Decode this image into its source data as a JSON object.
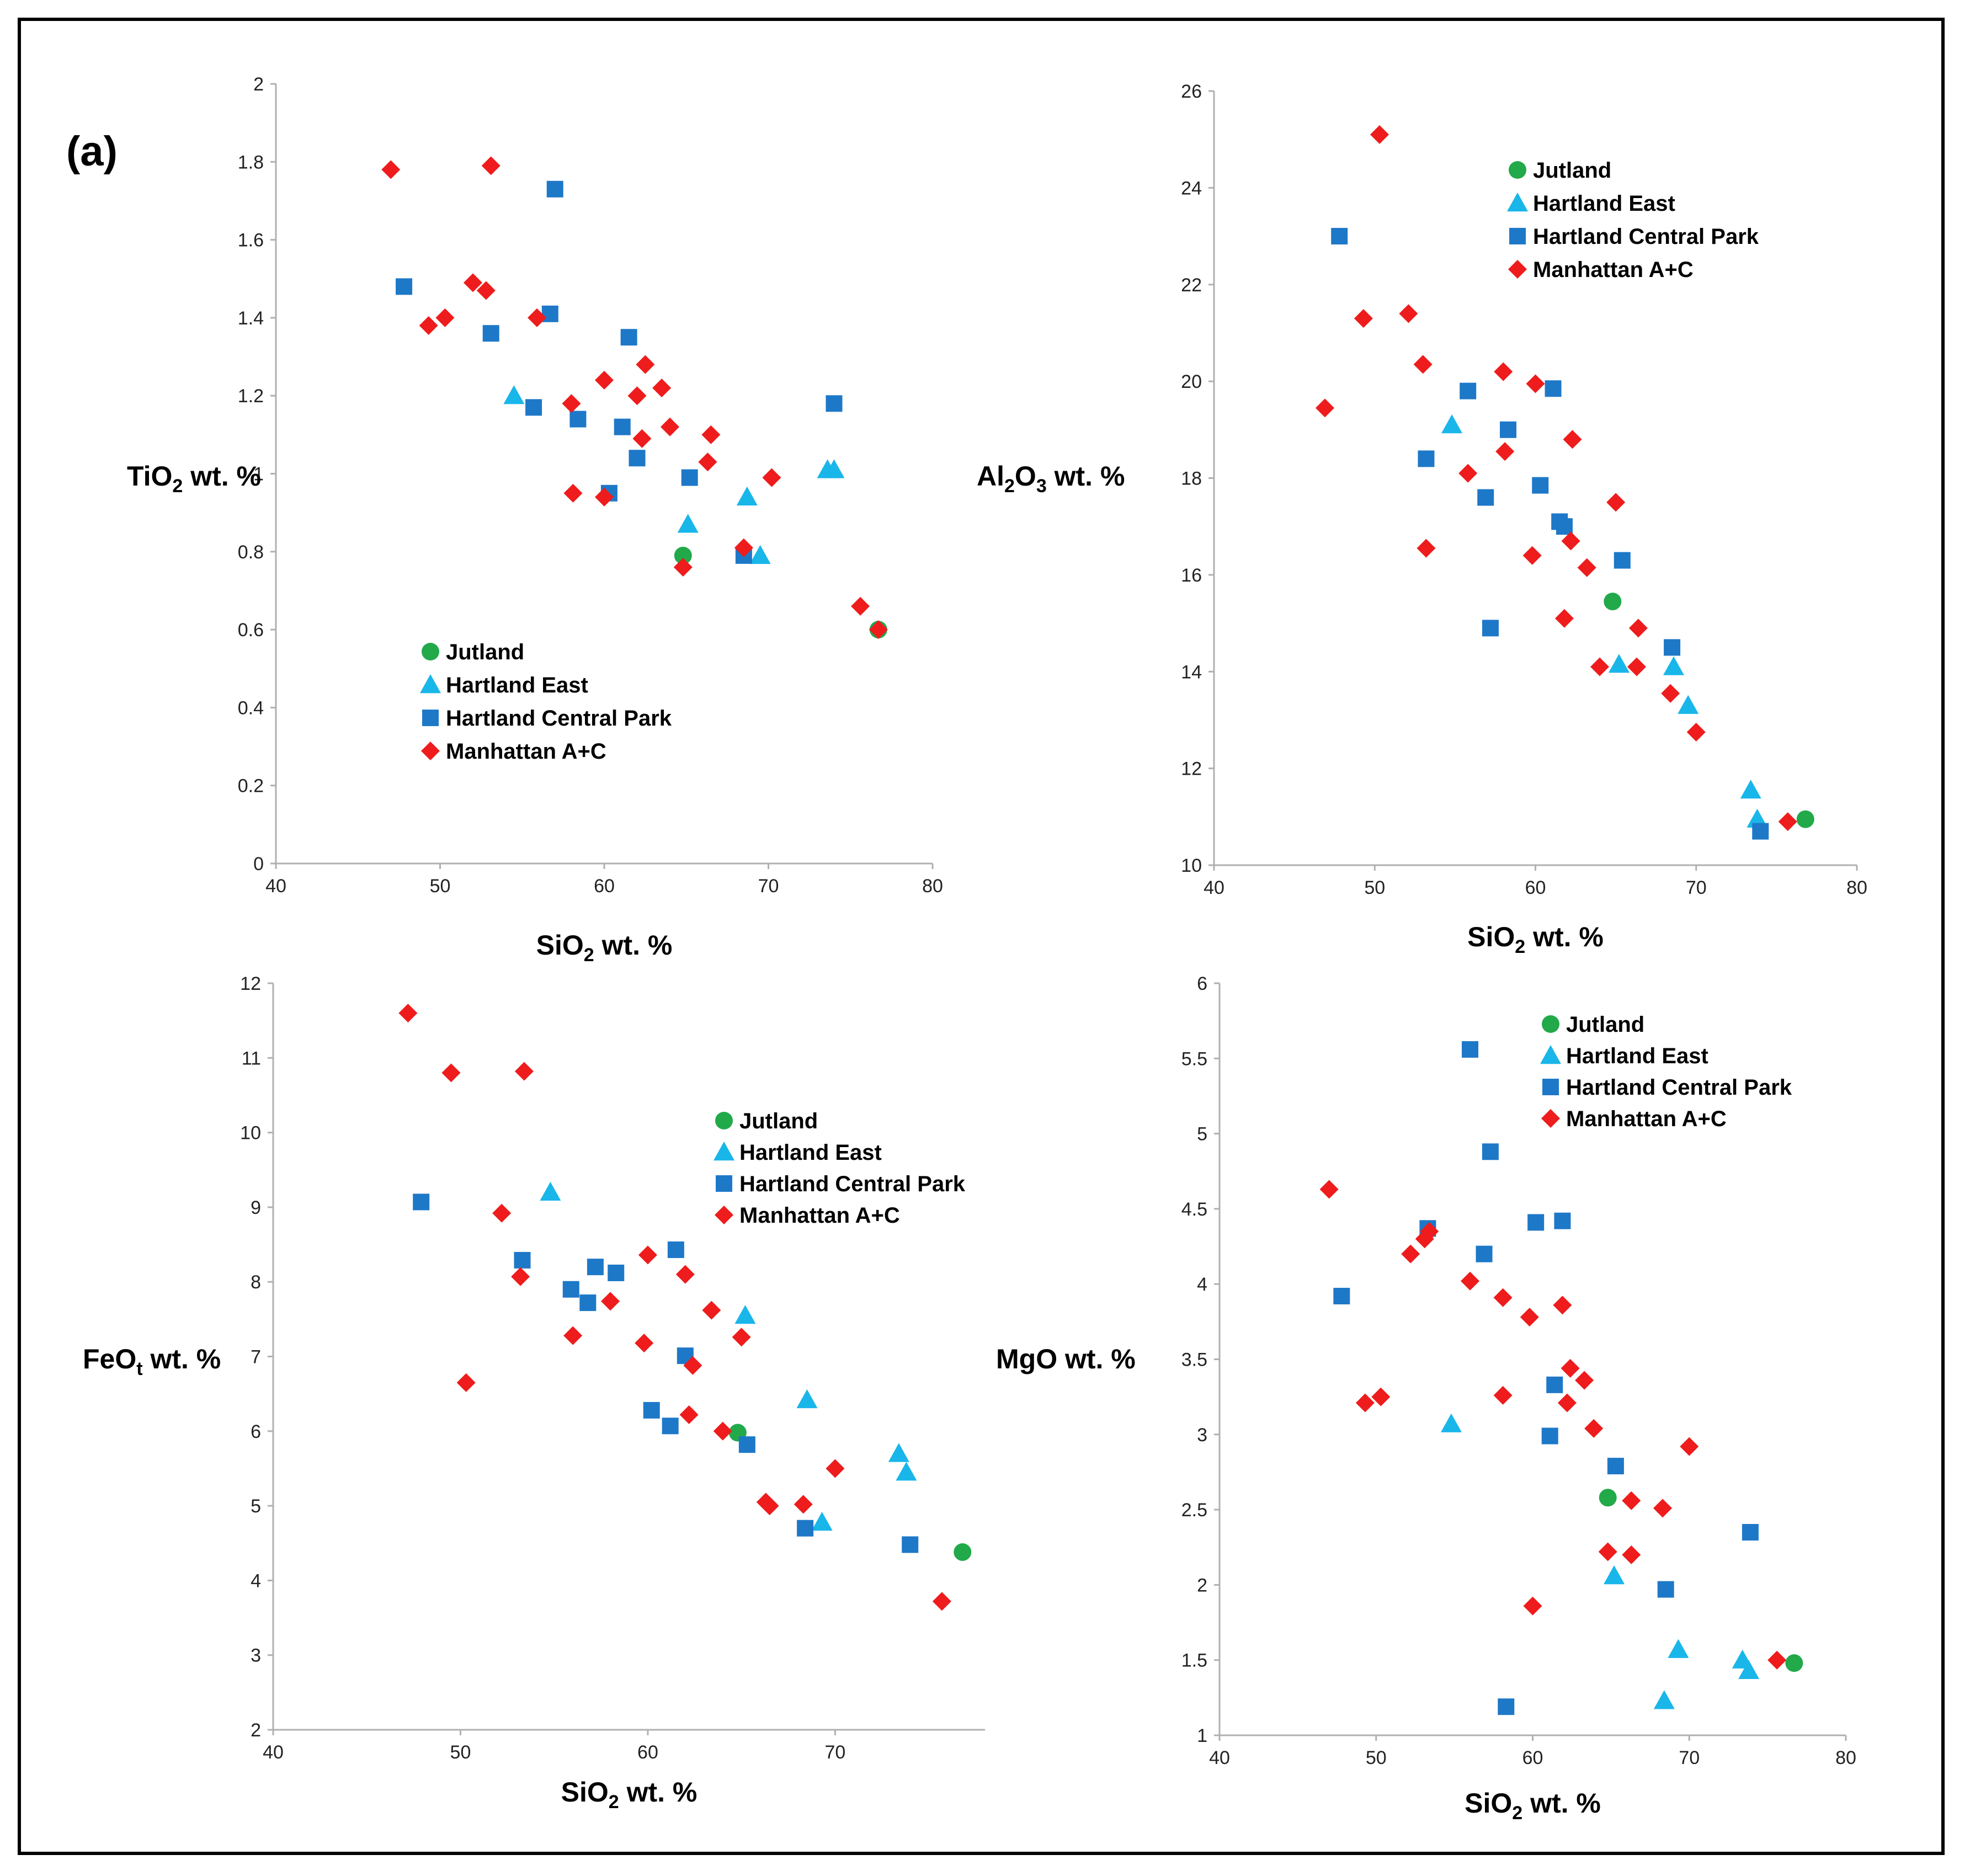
{
  "figure_label": "(a)",
  "colors": {
    "Jutland": "#22a94a",
    "Hartland East": "#19b6ea",
    "Hartland Central Park": "#1e78c8",
    "Manhattan A+C": "#ee1c1c"
  },
  "legend_items": [
    "Jutland",
    "Hartland East",
    "Hartland Central Park",
    "Manhattan A+C"
  ],
  "chart_data": [
    {
      "type": "scatter",
      "panel": "TiO2",
      "xlabel": "SiO2 wt. %",
      "ylabel": "TiO2 wt. %",
      "xlim": [
        40,
        80
      ],
      "ylim": [
        0,
        2
      ],
      "xticks": [
        40,
        50,
        60,
        70,
        80
      ],
      "yticks": [
        0,
        0.2,
        0.4,
        0.6,
        0.8,
        1,
        1.2,
        1.4,
        1.6,
        1.8,
        2
      ],
      "legend_position": "center-left",
      "series": [
        {
          "name": "Jutland",
          "marker": "circle",
          "points": [
            [
              64.8,
              0.79
            ],
            [
              76.7,
              0.6
            ]
          ]
        },
        {
          "name": "Hartland East",
          "marker": "triangle",
          "points": [
            [
              54.5,
              1.2
            ],
            [
              65.1,
              0.87
            ],
            [
              68.7,
              0.94
            ],
            [
              69.5,
              0.79
            ],
            [
              73.6,
              1.01
            ],
            [
              74.0,
              1.01
            ]
          ]
        },
        {
          "name": "Hartland Central Park",
          "marker": "square",
          "points": [
            [
              47.8,
              1.48
            ],
            [
              53.1,
              1.36
            ],
            [
              55.7,
              1.17
            ],
            [
              56.7,
              1.41
            ],
            [
              57.0,
              1.73
            ],
            [
              58.4,
              1.14
            ],
            [
              60.3,
              0.95
            ],
            [
              61.1,
              1.12
            ],
            [
              61.5,
              1.35
            ],
            [
              62.0,
              1.04
            ],
            [
              65.2,
              0.99
            ],
            [
              68.5,
              0.79
            ],
            [
              74.0,
              1.18
            ]
          ]
        },
        {
          "name": "Manhattan A+C",
          "marker": "diamond",
          "points": [
            [
              47.0,
              1.78
            ],
            [
              49.3,
              1.38
            ],
            [
              50.3,
              1.4
            ],
            [
              52.0,
              1.49
            ],
            [
              52.8,
              1.47
            ],
            [
              53.1,
              1.79
            ],
            [
              55.9,
              1.4
            ],
            [
              58.0,
              1.18
            ],
            [
              58.1,
              0.95
            ],
            [
              60.0,
              1.24
            ],
            [
              60.0,
              0.94
            ],
            [
              62.0,
              1.2
            ],
            [
              62.3,
              1.09
            ],
            [
              62.5,
              1.28
            ],
            [
              63.5,
              1.22
            ],
            [
              64.0,
              1.12
            ],
            [
              64.8,
              0.76
            ],
            [
              66.3,
              1.03
            ],
            [
              66.5,
              1.1
            ],
            [
              68.5,
              0.81
            ],
            [
              70.2,
              0.99
            ],
            [
              75.6,
              0.66
            ],
            [
              76.7,
              0.6
            ]
          ]
        }
      ]
    },
    {
      "type": "scatter",
      "panel": "Al2O3",
      "xlabel": "SiO2 wt. %",
      "ylabel": "Al2O3 wt. %",
      "xlim": [
        40,
        80
      ],
      "ylim": [
        10,
        26
      ],
      "xticks": [
        40,
        50,
        60,
        70,
        80
      ],
      "yticks": [
        10,
        12,
        14,
        16,
        18,
        20,
        22,
        24,
        26
      ],
      "legend_position": "top-center",
      "series": [
        {
          "name": "Jutland",
          "marker": "circle",
          "points": [
            [
              64.8,
              15.45
            ],
            [
              76.8,
              10.95
            ]
          ]
        },
        {
          "name": "Hartland East",
          "marker": "triangle",
          "points": [
            [
              54.8,
              19.1
            ],
            [
              65.2,
              14.15
            ],
            [
              68.6,
              14.1
            ],
            [
              69.5,
              13.3
            ],
            [
              73.4,
              11.55
            ],
            [
              73.8,
              10.95
            ]
          ]
        },
        {
          "name": "Hartland Central Park",
          "marker": "square",
          "points": [
            [
              47.8,
              23.0
            ],
            [
              53.2,
              18.4
            ],
            [
              55.8,
              19.8
            ],
            [
              56.9,
              17.6
            ],
            [
              57.2,
              14.9
            ],
            [
              58.3,
              19.0
            ],
            [
              60.3,
              17.85
            ],
            [
              61.1,
              19.85
            ],
            [
              61.5,
              17.1
            ],
            [
              61.8,
              17.0
            ],
            [
              65.4,
              16.3
            ],
            [
              68.5,
              14.5
            ],
            [
              74.0,
              10.7
            ]
          ]
        },
        {
          "name": "Manhattan A+C",
          "marker": "diamond",
          "points": [
            [
              46.9,
              19.45
            ],
            [
              49.3,
              21.3
            ],
            [
              50.3,
              25.1
            ],
            [
              52.1,
              21.4
            ],
            [
              53.0,
              20.35
            ],
            [
              53.2,
              16.55
            ],
            [
              55.8,
              18.1
            ],
            [
              58.0,
              20.2
            ],
            [
              58.1,
              18.55
            ],
            [
              59.8,
              16.4
            ],
            [
              60.0,
              19.95
            ],
            [
              61.8,
              15.1
            ],
            [
              62.2,
              16.7
            ],
            [
              62.3,
              18.8
            ],
            [
              63.2,
              16.15
            ],
            [
              64.0,
              14.1
            ],
            [
              65.0,
              17.5
            ],
            [
              66.3,
              14.1
            ],
            [
              66.4,
              14.9
            ],
            [
              68.4,
              13.55
            ],
            [
              70.0,
              12.75
            ],
            [
              75.7,
              10.9
            ]
          ]
        }
      ]
    },
    {
      "type": "scatter",
      "panel": "FeOt",
      "xlabel": "SiO2 wt. %",
      "ylabel": "FeOt wt. %",
      "xlim": [
        40,
        78
      ],
      "ylim": [
        2,
        12
      ],
      "xticks": [
        40,
        50,
        60,
        70
      ],
      "yticks": [
        2,
        3,
        4,
        5,
        6,
        7,
        8,
        9,
        10,
        11,
        12
      ],
      "legend_position": "top-right",
      "series": [
        {
          "name": "Jutland",
          "marker": "circle",
          "points": [
            [
              64.8,
              5.98
            ],
            [
              76.8,
              4.38
            ]
          ]
        },
        {
          "name": "Hartland East",
          "marker": "triangle",
          "points": [
            [
              54.8,
              9.2
            ],
            [
              65.2,
              7.55
            ],
            [
              68.5,
              6.42
            ],
            [
              69.3,
              4.78
            ],
            [
              73.4,
              5.7
            ],
            [
              73.8,
              5.45
            ]
          ]
        },
        {
          "name": "Hartland Central Park",
          "marker": "square",
          "points": [
            [
              47.9,
              9.07
            ],
            [
              53.3,
              8.29
            ],
            [
              55.9,
              7.9
            ],
            [
              56.8,
              7.72
            ],
            [
              57.2,
              8.2
            ],
            [
              58.3,
              8.12
            ],
            [
              60.2,
              6.28
            ],
            [
              61.2,
              6.07
            ],
            [
              61.5,
              8.43
            ],
            [
              62.0,
              7.01
            ],
            [
              65.3,
              5.82
            ],
            [
              68.4,
              4.7
            ],
            [
              74.0,
              4.48
            ]
          ]
        },
        {
          "name": "Manhattan A+C",
          "marker": "diamond",
          "points": [
            [
              47.2,
              11.6
            ],
            [
              49.5,
              10.8
            ],
            [
              50.3,
              6.65
            ],
            [
              52.2,
              8.92
            ],
            [
              53.2,
              8.07
            ],
            [
              53.4,
              10.82
            ],
            [
              56.0,
              7.28
            ],
            [
              58.0,
              7.74
            ],
            [
              59.8,
              7.18
            ],
            [
              60.0,
              8.36
            ],
            [
              62.0,
              8.1
            ],
            [
              62.2,
              6.22
            ],
            [
              62.4,
              6.88
            ],
            [
              63.4,
              7.62
            ],
            [
              64.0,
              6.0
            ],
            [
              65.0,
              7.26
            ],
            [
              66.3,
              5.05
            ],
            [
              66.5,
              5.0
            ],
            [
              68.3,
              5.02
            ],
            [
              70.0,
              5.5
            ],
            [
              75.7,
              3.72
            ]
          ]
        }
      ]
    },
    {
      "type": "scatter",
      "panel": "MgO",
      "xlabel": "SiO2 wt. %",
      "ylabel": "MgO wt. %",
      "xlim": [
        40,
        80
      ],
      "ylim": [
        1,
        6
      ],
      "xticks": [
        40,
        50,
        60,
        70,
        80
      ],
      "yticks": [
        1,
        1.5,
        2,
        2.5,
        3,
        3.5,
        4,
        4.5,
        5,
        5.5,
        6
      ],
      "legend_position": "top-center",
      "series": [
        {
          "name": "Jutland",
          "marker": "circle",
          "points": [
            [
              64.8,
              2.58
            ],
            [
              76.7,
              1.48
            ]
          ]
        },
        {
          "name": "Hartland East",
          "marker": "triangle",
          "points": [
            [
              54.8,
              3.07
            ],
            [
              65.2,
              2.06
            ],
            [
              68.4,
              1.23
            ],
            [
              69.3,
              1.57
            ],
            [
              73.4,
              1.5
            ],
            [
              73.8,
              1.43
            ]
          ]
        },
        {
          "name": "Hartland Central Park",
          "marker": "square",
          "points": [
            [
              47.8,
              3.92
            ],
            [
              53.3,
              4.37
            ],
            [
              56.0,
              5.56
            ],
            [
              56.9,
              4.2
            ],
            [
              57.3,
              4.88
            ],
            [
              58.3,
              1.19
            ],
            [
              60.2,
              4.41
            ],
            [
              61.1,
              2.99
            ],
            [
              61.4,
              3.33
            ],
            [
              61.9,
              4.42
            ],
            [
              65.3,
              2.79
            ],
            [
              68.5,
              1.97
            ],
            [
              73.9,
              2.35
            ]
          ]
        },
        {
          "name": "Manhattan A+C",
          "marker": "diamond",
          "points": [
            [
              47.0,
              4.63
            ],
            [
              49.3,
              3.21
            ],
            [
              50.3,
              3.25
            ],
            [
              52.2,
              4.2
            ],
            [
              53.1,
              4.3
            ],
            [
              53.4,
              4.35
            ],
            [
              56.0,
              4.02
            ],
            [
              58.1,
              3.91
            ],
            [
              58.1,
              3.26
            ],
            [
              59.8,
              3.78
            ],
            [
              60.0,
              1.86
            ],
            [
              61.9,
              3.86
            ],
            [
              62.2,
              3.21
            ],
            [
              62.4,
              3.44
            ],
            [
              63.3,
              3.36
            ],
            [
              63.9,
              3.04
            ],
            [
              64.8,
              2.22
            ],
            [
              66.3,
              2.56
            ],
            [
              66.3,
              2.2
            ],
            [
              68.3,
              2.51
            ],
            [
              70.0,
              2.92
            ],
            [
              75.6,
              1.5
            ]
          ]
        }
      ]
    }
  ]
}
